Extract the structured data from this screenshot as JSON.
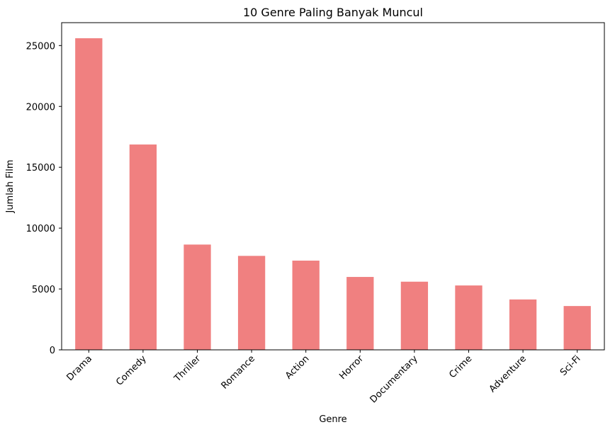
{
  "chart_data": {
    "type": "bar",
    "title": "10 Genre Paling Banyak Muncul",
    "xlabel": "Genre",
    "ylabel": "Jumlah Film",
    "categories": [
      "Drama",
      "Comedy",
      "Thriller",
      "Romance",
      "Action",
      "Horror",
      "Documentary",
      "Crime",
      "Adventure",
      "Sci-Fi"
    ],
    "values": [
      25600,
      16870,
      8650,
      7720,
      7330,
      5990,
      5600,
      5290,
      4140,
      3600
    ],
    "ylim": [
      0,
      26880
    ],
    "yticks": [
      0,
      5000,
      10000,
      15000,
      20000,
      25000
    ],
    "ytick_labels": [
      "0",
      "5000",
      "10000",
      "15000",
      "20000",
      "25000"
    ],
    "bar_color": "#f08080",
    "grid": false,
    "legend": "none"
  }
}
